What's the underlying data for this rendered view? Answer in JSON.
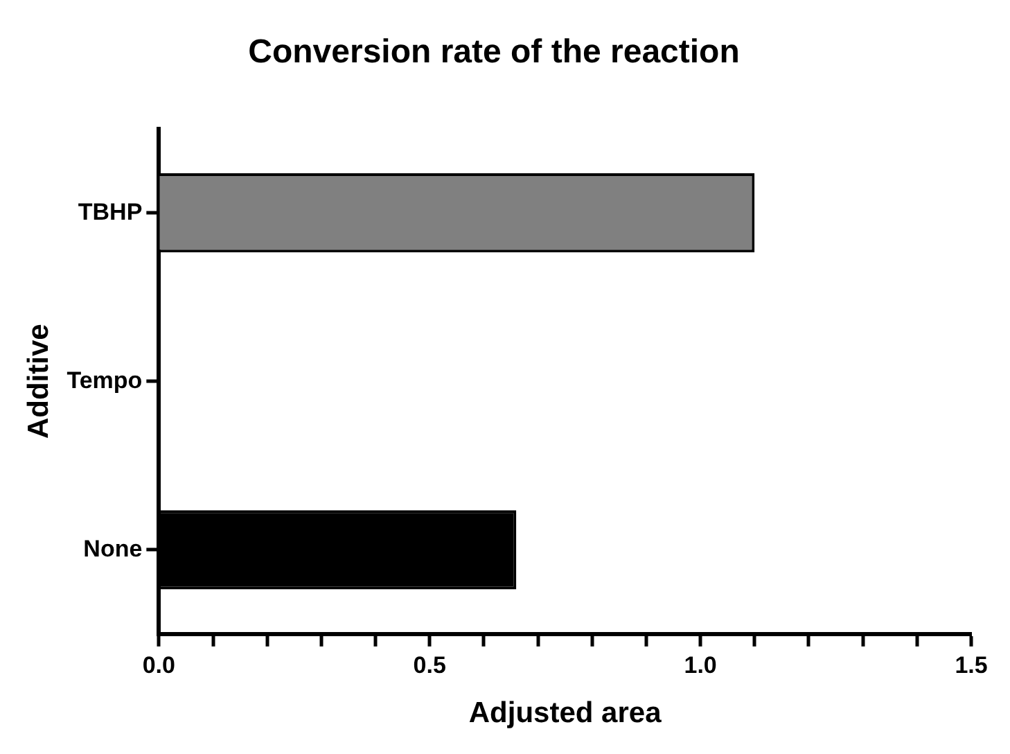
{
  "chart_data": {
    "type": "bar",
    "orientation": "horizontal",
    "title": "Conversion rate of the reaction",
    "xlabel": "Adjusted area",
    "ylabel": "Additive",
    "categories": [
      "TBHP",
      "Tempo",
      "None"
    ],
    "values": [
      1.1,
      0,
      0.66
    ],
    "colors": [
      "#808080",
      "#000000",
      "#000000"
    ],
    "xlim": [
      0,
      1.5
    ],
    "xticks": [
      {
        "value": 0,
        "label": "0.0"
      },
      {
        "value": 0.1,
        "label": null
      },
      {
        "value": 0.2,
        "label": null
      },
      {
        "value": 0.3,
        "label": null
      },
      {
        "value": 0.4,
        "label": null
      },
      {
        "value": 0.5,
        "label": "0.5"
      },
      {
        "value": 0.6,
        "label": null
      },
      {
        "value": 0.7,
        "label": null
      },
      {
        "value": 0.8,
        "label": null
      },
      {
        "value": 0.9,
        "label": null
      },
      {
        "value": 1,
        "label": "1.0"
      },
      {
        "value": 1.1,
        "label": null
      },
      {
        "value": 1.2,
        "label": null
      },
      {
        "value": 1.3,
        "label": null
      },
      {
        "value": 1.4,
        "label": null
      },
      {
        "value": 1.5,
        "label": "1.5"
      }
    ],
    "grid": false,
    "legend": false
  }
}
